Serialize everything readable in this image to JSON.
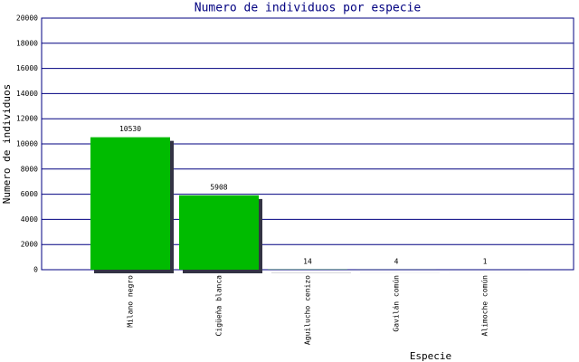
{
  "chart_data": {
    "type": "bar",
    "title": "Numero de individuos por especie",
    "x_label": "Especie",
    "y_label": "Numero de individuos",
    "categories": [
      "Milano negro",
      "Cigüeña blanca",
      "Aguilucho cenizo",
      "Gavilán común",
      "Alimoche común"
    ],
    "values": [
      10530,
      5908,
      14,
      4,
      1
    ],
    "color": "#00bb00",
    "shadow_color": "#333344",
    "ylim": [
      0,
      20000
    ],
    "yticks": [
      0,
      2000,
      4000,
      6000,
      8000,
      10000,
      12000,
      14000,
      16000,
      18000,
      20000
    ],
    "grid": true
  }
}
